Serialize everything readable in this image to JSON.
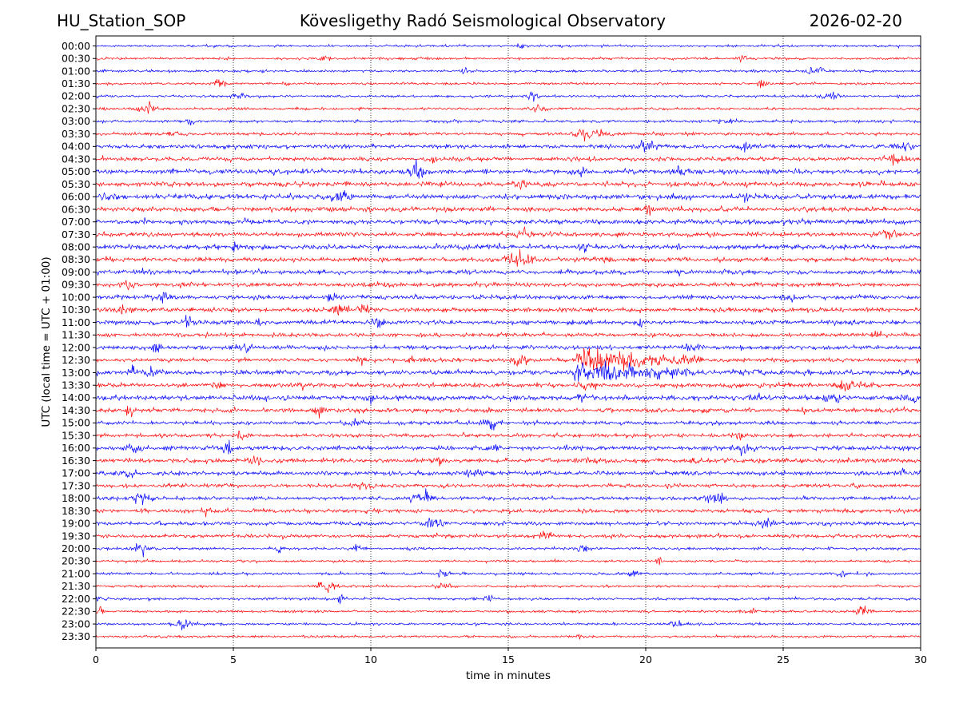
{
  "header": {
    "station": "HU_Station_SOP",
    "title": "Kövesligethy Radó Seismological Observatory",
    "date": "2026-02-20"
  },
  "chart_data": {
    "type": "line",
    "title": "Kövesligethy Radó Seismological Observatory",
    "xlabel": "time in minutes",
    "ylabel": "UTC (local time = UTC + 01:00)",
    "xlim": [
      0,
      30
    ],
    "x_ticks": [
      "0",
      "5",
      "10",
      "15",
      "20",
      "25",
      "30"
    ],
    "grid": "vertical dotted lines at 5-minute ticks",
    "row_labels": [
      "00:00",
      "00:30",
      "01:00",
      "01:30",
      "02:00",
      "02:30",
      "03:00",
      "03:30",
      "04:00",
      "04:30",
      "05:00",
      "05:30",
      "06:00",
      "06:30",
      "07:00",
      "07:30",
      "08:00",
      "08:30",
      "09:00",
      "09:30",
      "10:00",
      "10:30",
      "11:00",
      "11:30",
      "12:00",
      "12:30",
      "13:00",
      "13:30",
      "14:00",
      "14:30",
      "15:00",
      "15:30",
      "16:00",
      "16:30",
      "17:00",
      "17:30",
      "18:00",
      "18:30",
      "19:00",
      "19:30",
      "20:00",
      "20:30",
      "21:00",
      "21:30",
      "22:00",
      "22:30",
      "23:00",
      "23:30"
    ],
    "colors": {
      "even_rows": "#0000ff",
      "odd_rows": "#ff0000"
    },
    "trace_amplitude": [
      0.25,
      0.25,
      0.25,
      0.25,
      0.25,
      0.25,
      0.3,
      0.32,
      0.42,
      0.4,
      0.5,
      0.5,
      0.55,
      0.5,
      0.5,
      0.45,
      0.5,
      0.45,
      0.45,
      0.45,
      0.45,
      0.45,
      0.45,
      0.4,
      0.4,
      0.4,
      0.5,
      0.45,
      0.5,
      0.45,
      0.4,
      0.4,
      0.45,
      0.45,
      0.45,
      0.4,
      0.4,
      0.4,
      0.4,
      0.38,
      0.28,
      0.25,
      0.28,
      0.25,
      0.28,
      0.25,
      0.25,
      0.25
    ],
    "events": [
      {
        "row": "12:30",
        "start_min": 17.5,
        "end_min": 22.0,
        "peak": 2.4
      },
      {
        "row": "13:00",
        "start_min": 17.4,
        "end_min": 21.8,
        "peak": 1.9
      },
      {
        "row": "13:30",
        "start_min": 17.5,
        "end_min": 18.2,
        "peak": 1.0
      },
      {
        "row": "14:00",
        "start_min": 17.5,
        "end_min": 17.8,
        "peak": 0.8
      },
      {
        "row": "10:30",
        "start_min": 9.5,
        "end_min": 10.1,
        "peak": 0.9
      }
    ]
  }
}
